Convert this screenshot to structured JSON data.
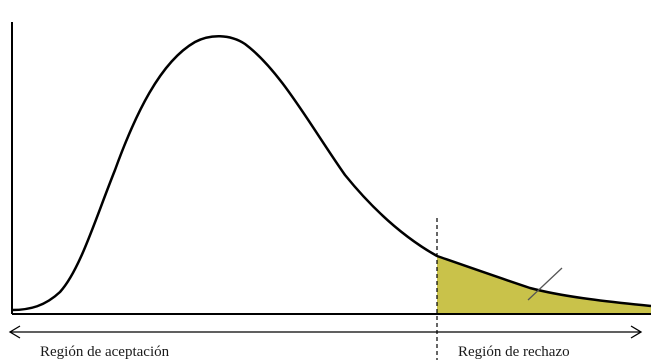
{
  "diagram": {
    "labels": {
      "acceptance_region": "Región de aceptación",
      "rejection_region": "Región de rechazo"
    },
    "colors": {
      "curve": "#000000",
      "rejection_fill": "#c9c24a",
      "axis": "#000000",
      "background": "#ffffff"
    }
  }
}
